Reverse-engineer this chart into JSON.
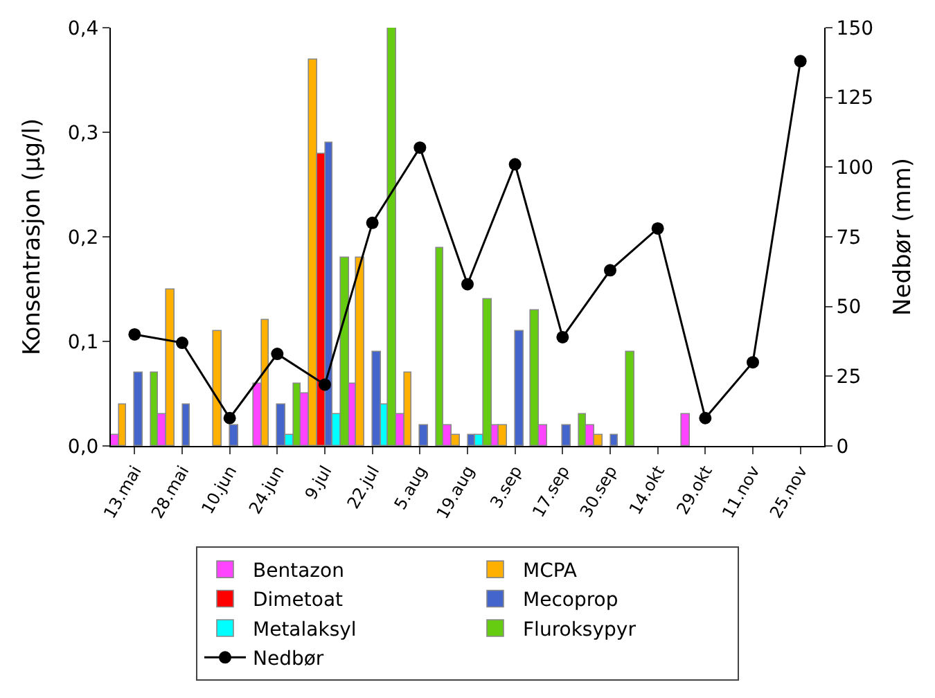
{
  "chart_data": {
    "type": "bar",
    "ylabel": "Konsentrasjon (µg/l)",
    "y2label": "Nedbør (mm)",
    "categories": [
      "13.mai",
      "28.mai",
      "10.jun",
      "24.jun",
      "9.jul",
      "22.jul",
      "5.aug",
      "19.aug",
      "3.sep",
      "17.sep",
      "30.sep",
      "14.okt",
      "29.okt",
      "11.nov",
      "25.nov"
    ],
    "series": [
      {
        "name": "Bentazon",
        "color": "#ff44ff",
        "values": [
          0.01,
          0.03,
          null,
          0.06,
          0.05,
          0.06,
          0.03,
          0.02,
          0.02,
          0.02,
          0.02,
          null,
          0.03,
          null,
          null
        ]
      },
      {
        "name": "MCPA",
        "color": "#ffb000",
        "values": [
          0.04,
          0.15,
          0.11,
          0.12,
          0.37,
          0.18,
          0.07,
          0.01,
          0.02,
          null,
          0.01,
          null,
          null,
          null,
          null
        ]
      },
      {
        "name": "Dimetoat",
        "color": "#ff0000",
        "values": [
          null,
          null,
          null,
          null,
          0.28,
          null,
          null,
          null,
          null,
          null,
          null,
          null,
          null,
          null,
          null
        ]
      },
      {
        "name": "Mecoprop",
        "color": "#4466cc",
        "values": [
          0.07,
          0.04,
          0.02,
          0.04,
          0.29,
          0.09,
          0.02,
          0.01,
          0.11,
          0.02,
          0.01,
          null,
          null,
          null,
          null
        ]
      },
      {
        "name": "Metalaksyl",
        "color": "#00ffff",
        "values": [
          null,
          null,
          null,
          0.01,
          0.03,
          0.04,
          null,
          0.01,
          null,
          null,
          null,
          null,
          null,
          null,
          null
        ]
      },
      {
        "name": "Fluroksypyr",
        "color": "#66cc11",
        "values": [
          0.07,
          null,
          null,
          0.06,
          0.18,
          0.4,
          0.19,
          0.14,
          0.13,
          0.03,
          0.09,
          null,
          null,
          null,
          null
        ]
      },
      {
        "name": "Nedbør",
        "type": "line",
        "axis": "y2",
        "color": "#000000",
        "marker": "circle",
        "values": [
          40,
          37,
          10,
          33,
          22,
          80,
          107,
          58,
          101,
          39,
          63,
          78,
          10,
          30,
          138
        ]
      }
    ],
    "ylim": [
      0,
      0.4
    ],
    "yticks": [
      {
        "value": 0,
        "label": "0,0"
      },
      {
        "value": 0.1,
        "label": "0,1"
      },
      {
        "value": 0.2,
        "label": "0,2"
      },
      {
        "value": 0.3,
        "label": "0,3"
      },
      {
        "value": 0.4,
        "label": "0,4"
      }
    ],
    "y2lim": [
      0,
      150
    ],
    "y2ticks": [
      0,
      25,
      50,
      75,
      100,
      125,
      150
    ],
    "grid": false,
    "legend": "bottom"
  }
}
